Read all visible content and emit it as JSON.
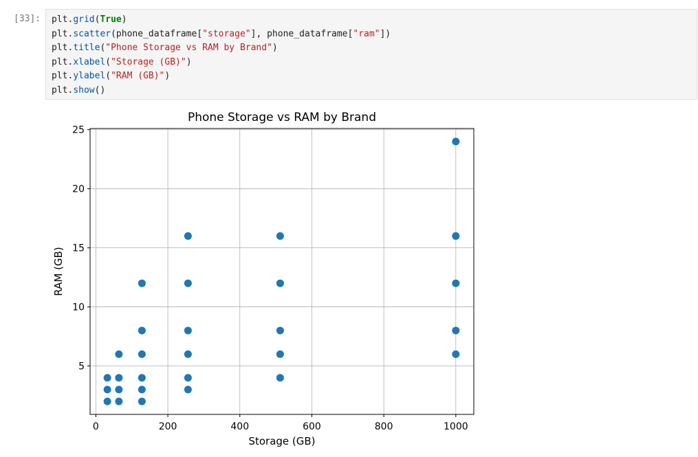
{
  "cell": {
    "prompt": "[33]:",
    "code_lines": [
      [
        {
          "t": "plt.",
          "c": "plain"
        },
        {
          "t": "grid",
          "c": "fn"
        },
        {
          "t": "(",
          "c": "plain"
        },
        {
          "t": "True",
          "c": "kw"
        },
        {
          "t": ")",
          "c": "plain"
        }
      ],
      [
        {
          "t": "plt.",
          "c": "plain"
        },
        {
          "t": "scatter",
          "c": "fn"
        },
        {
          "t": "(phone_dataframe[",
          "c": "plain"
        },
        {
          "t": "\"storage\"",
          "c": "str"
        },
        {
          "t": "], phone_dataframe[",
          "c": "plain"
        },
        {
          "t": "\"ram\"",
          "c": "str"
        },
        {
          "t": "])",
          "c": "plain"
        }
      ],
      [
        {
          "t": "plt.",
          "c": "plain"
        },
        {
          "t": "title",
          "c": "fn"
        },
        {
          "t": "(",
          "c": "plain"
        },
        {
          "t": "\"Phone Storage vs RAM by Brand\"",
          "c": "str"
        },
        {
          "t": ")",
          "c": "plain"
        }
      ],
      [
        {
          "t": "plt.",
          "c": "plain"
        },
        {
          "t": "xlabel",
          "c": "fn"
        },
        {
          "t": "(",
          "c": "plain"
        },
        {
          "t": "\"Storage (GB)\"",
          "c": "str"
        },
        {
          "t": ")",
          "c": "plain"
        }
      ],
      [
        {
          "t": "plt.",
          "c": "plain"
        },
        {
          "t": "ylabel",
          "c": "fn"
        },
        {
          "t": "(",
          "c": "plain"
        },
        {
          "t": "\"RAM (GB)\"",
          "c": "str"
        },
        {
          "t": ")",
          "c": "plain"
        }
      ],
      [
        {
          "t": "plt.",
          "c": "plain"
        },
        {
          "t": "show",
          "c": "fn"
        },
        {
          "t": "()",
          "c": "plain"
        }
      ]
    ]
  },
  "chart_data": {
    "type": "scatter",
    "title": "Phone Storage vs RAM by Brand",
    "xlabel": "Storage (GB)",
    "ylabel": "RAM (GB)",
    "xlim": [
      -16,
      1050
    ],
    "ylim": [
      0.9,
      25.1
    ],
    "xticks": [
      0,
      200,
      400,
      600,
      800,
      1000
    ],
    "yticks": [
      5,
      10,
      15,
      20,
      25
    ],
    "grid": true,
    "marker_color": "#1f77b4",
    "points": [
      [
        32,
        2
      ],
      [
        32,
        3
      ],
      [
        32,
        4
      ],
      [
        64,
        2
      ],
      [
        64,
        3
      ],
      [
        64,
        4
      ],
      [
        64,
        6
      ],
      [
        128,
        2
      ],
      [
        128,
        3
      ],
      [
        128,
        4
      ],
      [
        128,
        6
      ],
      [
        128,
        8
      ],
      [
        128,
        12
      ],
      [
        256,
        3
      ],
      [
        256,
        4
      ],
      [
        256,
        6
      ],
      [
        256,
        8
      ],
      [
        256,
        12
      ],
      [
        256,
        16
      ],
      [
        512,
        4
      ],
      [
        512,
        6
      ],
      [
        512,
        8
      ],
      [
        512,
        12
      ],
      [
        512,
        16
      ],
      [
        1000,
        6
      ],
      [
        1000,
        8
      ],
      [
        1000,
        12
      ],
      [
        1000,
        16
      ],
      [
        1000,
        24
      ]
    ]
  }
}
